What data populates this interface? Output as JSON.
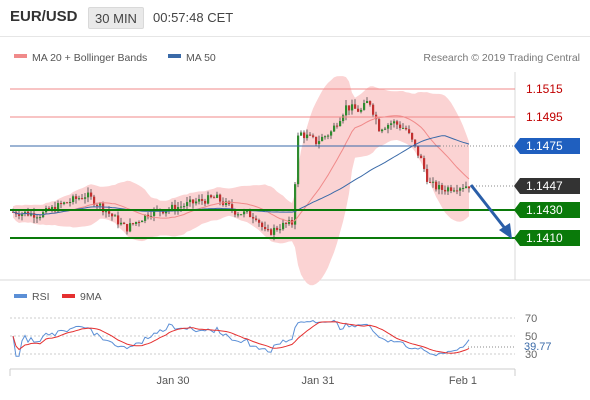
{
  "header": {
    "symbol": "EUR/USD",
    "timeframe": "30 MIN",
    "time": "00:57:48 CET"
  },
  "legend": [
    {
      "label": "MA 20 + Bollinger Bands",
      "color": "#f08a8a"
    },
    {
      "label": "MA 50",
      "color": "#3a6aa8"
    }
  ],
  "rsi_legend": [
    {
      "label": "RSI",
      "color": "#5b8fd6"
    },
    {
      "label": "9MA",
      "color": "#e53030"
    }
  ],
  "credit": "Research © 2019 Trading Central",
  "chart_data": {
    "type": "candlestick",
    "x_ticks": [
      "Jan 30",
      "Jan 31",
      "Feb 1"
    ],
    "levels": [
      {
        "value": "1.1515",
        "kind": "resistance",
        "color": "#c00000"
      },
      {
        "value": "1.1495",
        "kind": "resistance",
        "color": "#c00000"
      },
      {
        "value": "1.1475",
        "kind": "pivot",
        "color": "#1f5fbf"
      },
      {
        "value": "1.1447",
        "kind": "last price",
        "color": "#333333"
      },
      {
        "value": "1.1430",
        "kind": "support",
        "color": "#0a7a0a"
      },
      {
        "value": "1.1410",
        "kind": "support",
        "color": "#0a7a0a"
      }
    ],
    "rsi": {
      "ticks": [
        70,
        50,
        30
      ],
      "current": "39.77",
      "series": [
        "RSI",
        "9MA"
      ]
    },
    "arrow": "down toward 1.1410",
    "colors": {
      "up": "#2e8b2e",
      "down": "#c23030",
      "band": "#fbd3d3"
    }
  }
}
